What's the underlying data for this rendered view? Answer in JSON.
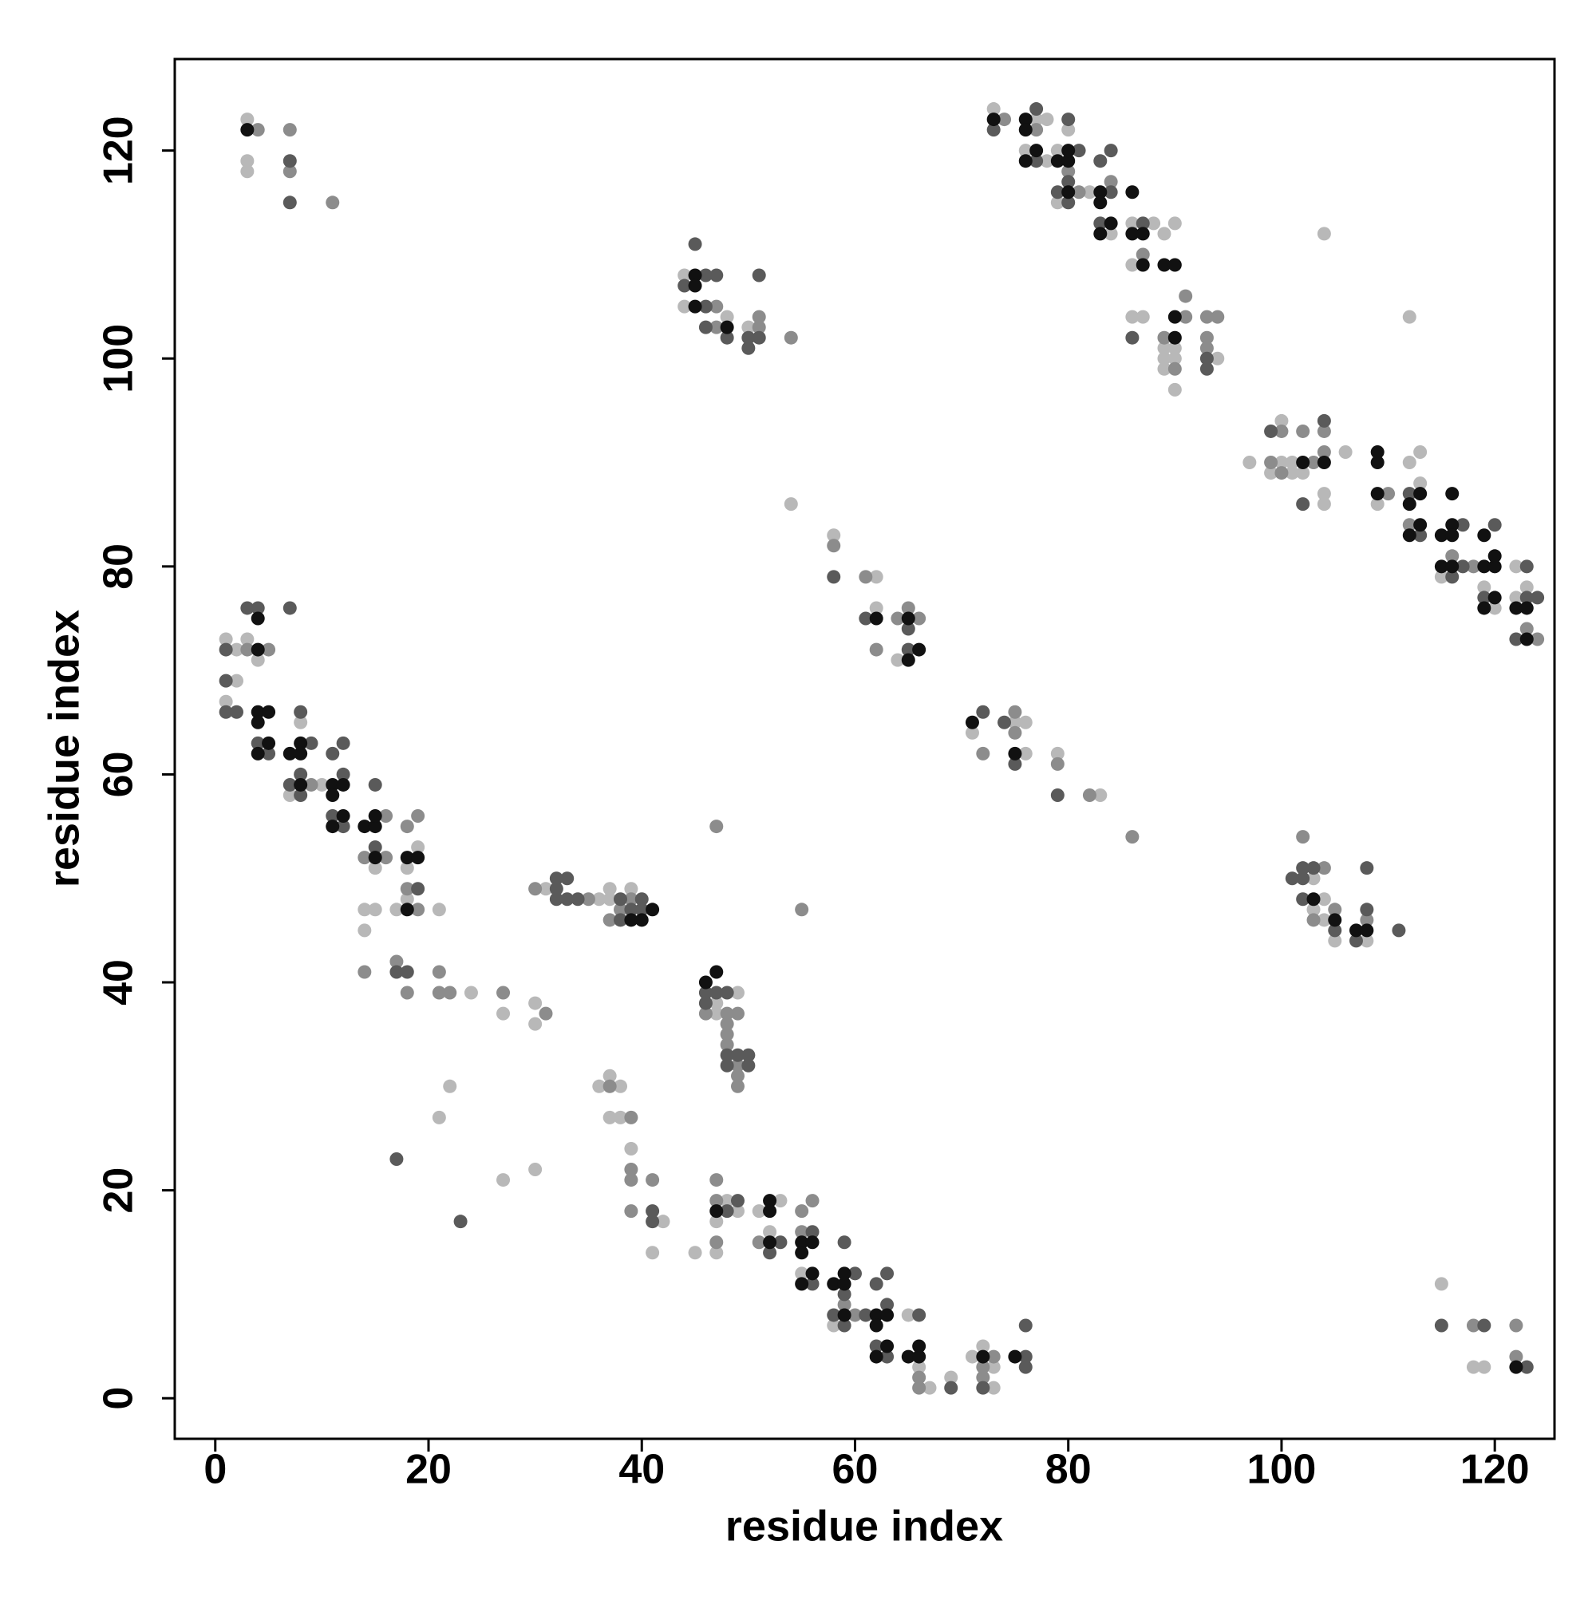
{
  "chart_data": {
    "type": "scatter",
    "xlabel": "residue index",
    "ylabel": "residue index",
    "xlim": [
      -3.8,
      125.6
    ],
    "ylim": [
      -3.9,
      128.8
    ],
    "xticks": [
      0,
      20,
      40,
      60,
      80,
      100,
      120
    ],
    "yticks": [
      0,
      20,
      40,
      60,
      80,
      100,
      120
    ],
    "series": [
      {
        "color": "#b8b8b8",
        "x": [
          3,
          3,
          3,
          1,
          2,
          3,
          4,
          2,
          1,
          8,
          7,
          10,
          15,
          19,
          18,
          18,
          17,
          14,
          15,
          14,
          21,
          24,
          27,
          30,
          30,
          22,
          21,
          27,
          30,
          31,
          36,
          37,
          37,
          39,
          36,
          37,
          38,
          37,
          38,
          39,
          42,
          41,
          45,
          47,
          47,
          49,
          48,
          49,
          47,
          47,
          51,
          53,
          52,
          55,
          58,
          65,
          66,
          67,
          69,
          71,
          72,
          73,
          73,
          44,
          44,
          48,
          50,
          54,
          58,
          62,
          62,
          64,
          71,
          75,
          76,
          76,
          79,
          83,
          73,
          77,
          78,
          76,
          78,
          80,
          79,
          79,
          82,
          84,
          86,
          88,
          86,
          86,
          87,
          89,
          90,
          89,
          90,
          89,
          90,
          89,
          90,
          94,
          97,
          100,
          100,
          101,
          99,
          101,
          102,
          104,
          104,
          106,
          104,
          109,
          112,
          113,
          112,
          113,
          115,
          119,
          120,
          122,
          122,
          123,
          103,
          104,
          103,
          104,
          105,
          108,
          115,
          118,
          119
        ],
        "values": [
          123,
          119,
          118,
          73,
          72,
          73,
          71,
          69,
          67,
          65,
          58,
          59,
          51,
          53,
          51,
          48,
          47,
          47,
          47,
          45,
          47,
          39,
          37,
          38,
          36,
          30,
          27,
          21,
          22,
          49,
          48,
          48,
          49,
          49,
          30,
          31,
          30,
          27,
          27,
          24,
          17,
          14,
          14,
          38,
          37,
          39,
          19,
          18,
          17,
          14,
          18,
          19,
          16,
          12,
          7,
          8,
          3,
          1,
          2,
          4,
          5,
          1,
          3,
          108,
          105,
          104,
          103,
          86,
          83,
          79,
          76,
          71,
          64,
          65,
          65,
          62,
          62,
          58,
          124,
          123,
          123,
          120,
          119,
          122,
          120,
          115,
          116,
          112,
          113,
          113,
          109,
          104,
          104,
          112,
          113,
          101,
          101,
          100,
          100,
          99,
          97,
          100,
          90,
          94,
          90,
          90,
          89,
          89,
          89,
          87,
          86,
          91,
          112,
          86,
          104,
          91,
          90,
          88,
          79,
          78,
          76,
          80,
          77,
          78,
          50,
          48,
          47,
          46,
          44,
          44,
          11,
          3,
          3
        ]
      },
      {
        "color": "#8c8c8c",
        "x": [
          4,
          7,
          7,
          11,
          3,
          5,
          9,
          16,
          14,
          16,
          18,
          19,
          18,
          19,
          14,
          17,
          18,
          21,
          21,
          22,
          27,
          31,
          30,
          35,
          38,
          37,
          39,
          37,
          39,
          39,
          39,
          41,
          39,
          46,
          48,
          49,
          48,
          48,
          48,
          49,
          49,
          49,
          47,
          47,
          47,
          47,
          51,
          55,
          56,
          55,
          59,
          60,
          66,
          66,
          73,
          72,
          72,
          47,
          47,
          51,
          51,
          54,
          55,
          58,
          61,
          62,
          64,
          65,
          66,
          72,
          75,
          75,
          79,
          82,
          86,
          74,
          77,
          80,
          81,
          84,
          87,
          91,
          91,
          89,
          90,
          93,
          94,
          93,
          93,
          100,
          99,
          100,
          102,
          103,
          104,
          104,
          110,
          112,
          116,
          118,
          123,
          124,
          102,
          104,
          105,
          103,
          108,
          118,
          122,
          122
        ],
        "values": [
          122,
          122,
          118,
          115,
          72,
          72,
          59,
          56,
          52,
          52,
          55,
          56,
          49,
          47,
          41,
          42,
          39,
          41,
          39,
          39,
          39,
          37,
          49,
          48,
          47,
          46,
          48,
          30,
          27,
          22,
          21,
          21,
          18,
          37,
          37,
          37,
          36,
          35,
          34,
          32,
          31,
          30,
          55,
          21,
          19,
          15,
          15,
          18,
          19,
          16,
          9,
          8,
          2,
          1,
          4,
          3,
          2,
          105,
          103,
          103,
          104,
          102,
          47,
          82,
          79,
          72,
          75,
          76,
          75,
          62,
          66,
          64,
          61,
          58,
          54,
          123,
          122,
          118,
          116,
          117,
          110,
          106,
          104,
          102,
          99,
          104,
          104,
          102,
          101,
          93,
          90,
          89,
          93,
          90,
          93,
          91,
          87,
          84,
          81,
          80,
          74,
          73,
          54,
          51,
          47,
          46,
          46,
          7,
          7,
          4
        ]
      },
      {
        "color": "#5a5a5a",
        "x": [
          7,
          7,
          1,
          1,
          1,
          2,
          3,
          4,
          7,
          4,
          5,
          8,
          9,
          7,
          8,
          8,
          11,
          12,
          12,
          11,
          12,
          15,
          15,
          19,
          17,
          18,
          17,
          23,
          32,
          32,
          33,
          32,
          33,
          34,
          38,
          39,
          40,
          38,
          40,
          41,
          41,
          46,
          47,
          46,
          48,
          48,
          49,
          50,
          48,
          50,
          48,
          49,
          53,
          52,
          56,
          56,
          59,
          60,
          59,
          58,
          61,
          59,
          62,
          63,
          63,
          66,
          62,
          63,
          69,
          72,
          76,
          76,
          76,
          45,
          46,
          47,
          44,
          46,
          46,
          48,
          50,
          51,
          50,
          51,
          58,
          61,
          65,
          65,
          72,
          74,
          75,
          79,
          73,
          77,
          77,
          81,
          80,
          79,
          80,
          80,
          83,
          84,
          84,
          83,
          87,
          86,
          93,
          93,
          99,
          102,
          104,
          112,
          113,
          117,
          116,
          117,
          120,
          119,
          123,
          123,
          124,
          122,
          101,
          102,
          103,
          102,
          102,
          105,
          107,
          108,
          108,
          111,
          115,
          119,
          123
        ],
        "values": [
          119,
          115,
          72,
          69,
          66,
          66,
          76,
          76,
          76,
          63,
          62,
          66,
          63,
          59,
          60,
          58,
          62,
          63,
          60,
          56,
          55,
          59,
          53,
          49,
          41,
          41,
          23,
          17,
          49,
          50,
          50,
          48,
          48,
          48,
          48,
          47,
          47,
          46,
          48,
          18,
          17,
          39,
          39,
          38,
          39,
          33,
          33,
          33,
          32,
          32,
          18,
          19,
          15,
          14,
          16,
          11,
          15,
          12,
          10,
          8,
          8,
          7,
          11,
          12,
          9,
          8,
          5,
          4,
          1,
          1,
          4,
          3,
          7,
          111,
          108,
          108,
          107,
          105,
          103,
          102,
          102,
          102,
          101,
          108,
          79,
          75,
          74,
          72,
          66,
          65,
          61,
          58,
          122,
          124,
          119,
          120,
          123,
          116,
          117,
          115,
          119,
          120,
          116,
          113,
          113,
          102,
          100,
          99,
          93,
          86,
          94,
          87,
          83,
          84,
          79,
          80,
          84,
          77,
          80,
          77,
          77,
          73,
          50,
          51,
          51,
          50,
          48,
          45,
          44,
          47,
          51,
          45,
          7,
          7,
          3
        ]
      },
      {
        "color": "#111111",
        "x": [
          3,
          4,
          4,
          4,
          5,
          4,
          5,
          4,
          7,
          8,
          8,
          8,
          11,
          12,
          11,
          12,
          11,
          14,
          15,
          15,
          15,
          18,
          19,
          18,
          41,
          39,
          40,
          46,
          47,
          47,
          52,
          52,
          52,
          55,
          56,
          55,
          56,
          55,
          58,
          59,
          59,
          59,
          62,
          63,
          62,
          63,
          62,
          65,
          66,
          66,
          72,
          75,
          45,
          45,
          45,
          48,
          62,
          65,
          65,
          66,
          71,
          75,
          73,
          76,
          76,
          77,
          76,
          79,
          80,
          80,
          80,
          83,
          83,
          84,
          83,
          86,
          86,
          87,
          87,
          89,
          90,
          90,
          90,
          102,
          104,
          109,
          109,
          109,
          112,
          113,
          113,
          112,
          116,
          115,
          116,
          116,
          115,
          116,
          119,
          119,
          120,
          120,
          120,
          119,
          122,
          123,
          123,
          103,
          105,
          107,
          108,
          122
        ],
        "values": [
          122,
          72,
          75,
          66,
          66,
          65,
          63,
          62,
          62,
          63,
          62,
          59,
          59,
          59,
          58,
          56,
          55,
          55,
          55,
          56,
          52,
          52,
          52,
          47,
          47,
          46,
          46,
          40,
          41,
          18,
          19,
          18,
          15,
          15,
          15,
          14,
          12,
          11,
          11,
          11,
          12,
          8,
          8,
          8,
          7,
          5,
          4,
          4,
          5,
          4,
          4,
          4,
          108,
          107,
          105,
          103,
          75,
          75,
          71,
          72,
          65,
          62,
          123,
          123,
          122,
          120,
          119,
          119,
          119,
          120,
          116,
          116,
          115,
          113,
          112,
          116,
          112,
          112,
          109,
          109,
          109,
          104,
          102,
          90,
          90,
          91,
          90,
          87,
          86,
          87,
          84,
          83,
          87,
          83,
          84,
          83,
          80,
          80,
          83,
          80,
          80,
          81,
          77,
          76,
          76,
          76,
          73,
          48,
          46,
          45,
          45,
          3
        ]
      }
    ]
  }
}
